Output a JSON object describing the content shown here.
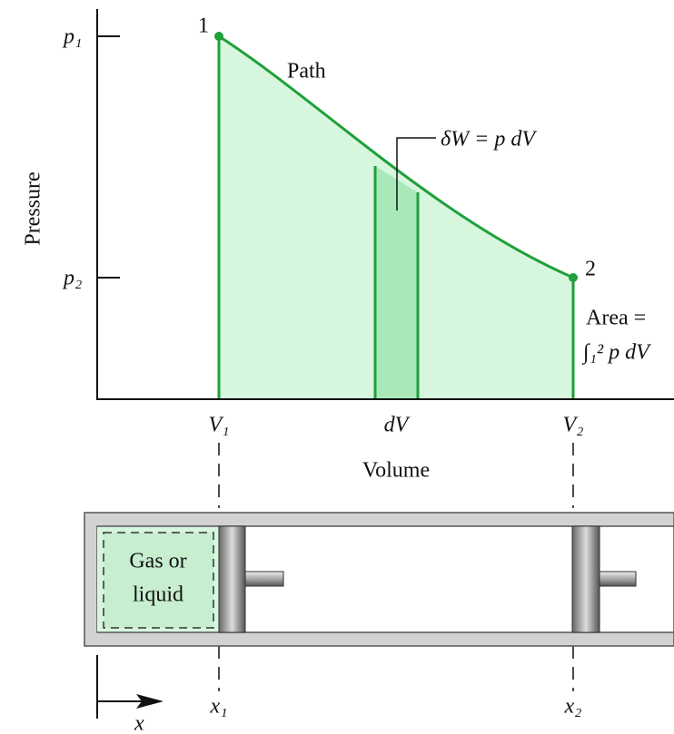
{
  "plot": {
    "y_axis_label": "Pressure",
    "x_axis_label": "Volume",
    "y_ticks": [
      "p₁",
      "p₂"
    ],
    "x_ticks": [
      "V₁",
      "dV",
      "V₂"
    ],
    "points": [
      "1",
      "2"
    ],
    "path_label": "Path",
    "work_label": "δW = p dV",
    "area_label": [
      "Area =",
      "∫₁² p dV"
    ]
  },
  "cylinder": {
    "contents": [
      "Gas or",
      "liquid"
    ],
    "positions": [
      "x₁",
      "x₂"
    ],
    "axis_label": "x"
  }
}
